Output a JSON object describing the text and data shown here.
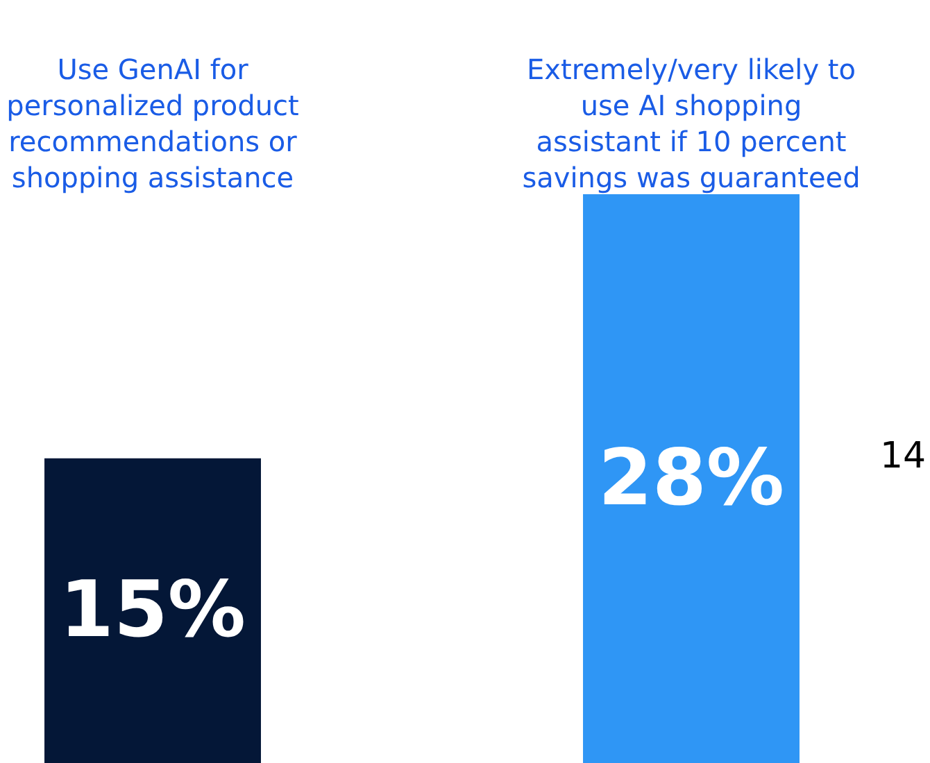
{
  "chart_data": {
    "type": "bar",
    "categories": [
      "Use GenAI for personalized product recommendations or shopping assistance",
      "Extremely/very likely to use AI shopping assistant if 10 percent savings was guaranteed"
    ],
    "values": [
      15,
      28
    ],
    "colors": [
      "#041737",
      "#2f96f5"
    ],
    "ylim": [
      0,
      28
    ],
    "data_labels": true,
    "value_labels": [
      "15%",
      "28%"
    ],
    "tick_labels": "x",
    "legend": false,
    "annotations": [
      "14"
    ]
  }
}
